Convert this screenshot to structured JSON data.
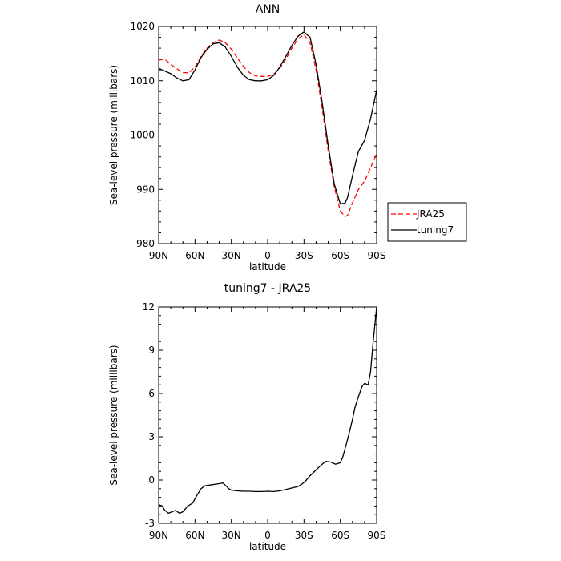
{
  "chart_data": [
    {
      "type": "line",
      "title": "ANN",
      "xlabel": "latitude",
      "ylabel": "Sea-level pressure (millibars)",
      "xlim": [
        90,
        -90
      ],
      "ylim": [
        980,
        1020
      ],
      "xticks": [
        {
          "value": 90,
          "label": "90N"
        },
        {
          "value": 60,
          "label": "60N"
        },
        {
          "value": 30,
          "label": "30N"
        },
        {
          "value": 0,
          "label": "0"
        },
        {
          "value": -30,
          "label": "30S"
        },
        {
          "value": -60,
          "label": "60S"
        },
        {
          "value": -90,
          "label": "90S"
        }
      ],
      "yticks": [
        980,
        990,
        1000,
        1010,
        1020
      ],
      "legend_position": "right",
      "series": [
        {
          "name": "JRA25",
          "color": "#ff0000",
          "dash": "dashed",
          "x": [
            90,
            85,
            80,
            75,
            70,
            65,
            60,
            55,
            50,
            45,
            40,
            35,
            30,
            25,
            20,
            15,
            10,
            5,
            0,
            -5,
            -10,
            -15,
            -20,
            -25,
            -30,
            -35,
            -40,
            -45,
            -50,
            -55,
            -60,
            -64,
            -66,
            -70,
            -75,
            -80,
            -85,
            -90
          ],
          "y": [
            1013.8,
            1014.0,
            1013.0,
            1012.2,
            1011.5,
            1011.5,
            1012.5,
            1014.5,
            1016.0,
            1017.0,
            1017.5,
            1017.0,
            1015.8,
            1014.2,
            1012.6,
            1011.5,
            1010.9,
            1010.8,
            1010.8,
            1011.2,
            1012.3,
            1014.0,
            1016.0,
            1017.7,
            1018.5,
            1017.0,
            1012.0,
            1005.0,
            997.0,
            990.5,
            986.0,
            985.0,
            985.2,
            987.5,
            990.0,
            991.5,
            994.0,
            996.5
          ]
        },
        {
          "name": "tuning7",
          "color": "#000000",
          "dash": "solid",
          "x": [
            90,
            85,
            80,
            75,
            70,
            65,
            60,
            55,
            50,
            45,
            40,
            35,
            30,
            25,
            20,
            15,
            10,
            5,
            0,
            -5,
            -10,
            -15,
            -20,
            -25,
            -30,
            -35,
            -40,
            -45,
            -50,
            -55,
            -60,
            -64,
            -66,
            -70,
            -75,
            -80,
            -85,
            -90
          ],
          "y": [
            1012.3,
            1011.8,
            1011.3,
            1010.5,
            1010.0,
            1010.2,
            1012.0,
            1014.3,
            1015.8,
            1016.8,
            1017.0,
            1016.2,
            1014.5,
            1012.5,
            1011.0,
            1010.2,
            1010.0,
            1010.0,
            1010.2,
            1011.0,
            1012.5,
            1014.5,
            1016.5,
            1018.2,
            1019.0,
            1018.0,
            1013.0,
            1006.0,
            998.0,
            991.0,
            987.3,
            987.5,
            988.5,
            992.5,
            997.0,
            999.0,
            1003.0,
            1008.3
          ]
        }
      ]
    },
    {
      "type": "line",
      "title": "tuning7 - JRA25",
      "xlabel": "latitude",
      "ylabel": "Sea-level pressure (millibars)",
      "xlim": [
        90,
        -90
      ],
      "ylim": [
        -3,
        12
      ],
      "xticks": [
        {
          "value": 90,
          "label": "90N"
        },
        {
          "value": 60,
          "label": "60N"
        },
        {
          "value": 30,
          "label": "30N"
        },
        {
          "value": 0,
          "label": "0"
        },
        {
          "value": -30,
          "label": "30S"
        },
        {
          "value": -60,
          "label": "60S"
        },
        {
          "value": -90,
          "label": "90S"
        }
      ],
      "yticks": [
        -3,
        0,
        3,
        6,
        9,
        12
      ],
      "series": [
        {
          "color": "#000000",
          "dash": "solid",
          "x": [
            90,
            87,
            85,
            82,
            79,
            76,
            73,
            70,
            66,
            62,
            58,
            55,
            52,
            48,
            44,
            40,
            37,
            35,
            32,
            30,
            25,
            20,
            15,
            10,
            5,
            0,
            -5,
            -10,
            -15,
            -20,
            -25,
            -28,
            -31,
            -35,
            -40,
            -45,
            -48,
            -52,
            -56,
            -60,
            -62,
            -65,
            -68,
            -70,
            -72,
            -75,
            -78,
            -80,
            -83,
            -85,
            -87,
            -90
          ],
          "y": [
            -1.7,
            -1.8,
            -2.1,
            -2.3,
            -2.2,
            -2.1,
            -2.3,
            -2.2,
            -1.8,
            -1.6,
            -1.0,
            -0.6,
            -0.4,
            -0.35,
            -0.3,
            -0.25,
            -0.2,
            -0.35,
            -0.6,
            -0.7,
            -0.75,
            -0.78,
            -0.78,
            -0.8,
            -0.8,
            -0.78,
            -0.8,
            -0.75,
            -0.65,
            -0.55,
            -0.45,
            -0.3,
            -0.1,
            0.3,
            0.7,
            1.1,
            1.3,
            1.25,
            1.1,
            1.2,
            1.6,
            2.5,
            3.5,
            4.2,
            5.0,
            5.8,
            6.5,
            6.7,
            6.6,
            7.5,
            9.5,
            12.0
          ]
        }
      ]
    }
  ]
}
